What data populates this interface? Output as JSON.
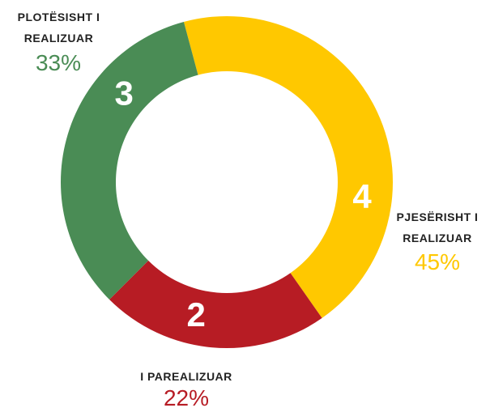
{
  "chart_data": {
    "type": "donut",
    "categories": [
      "PJESËRISHT I REALIZUAR",
      "I PAREALIZUAR",
      "PLOTËSISHT I REALIZUAR"
    ],
    "values": [
      4,
      2,
      3
    ],
    "percent_labels": [
      "45%",
      "22%",
      "33%"
    ],
    "colors": [
      "#FFC800",
      "#B71C24",
      "#4A8C55"
    ]
  }
}
